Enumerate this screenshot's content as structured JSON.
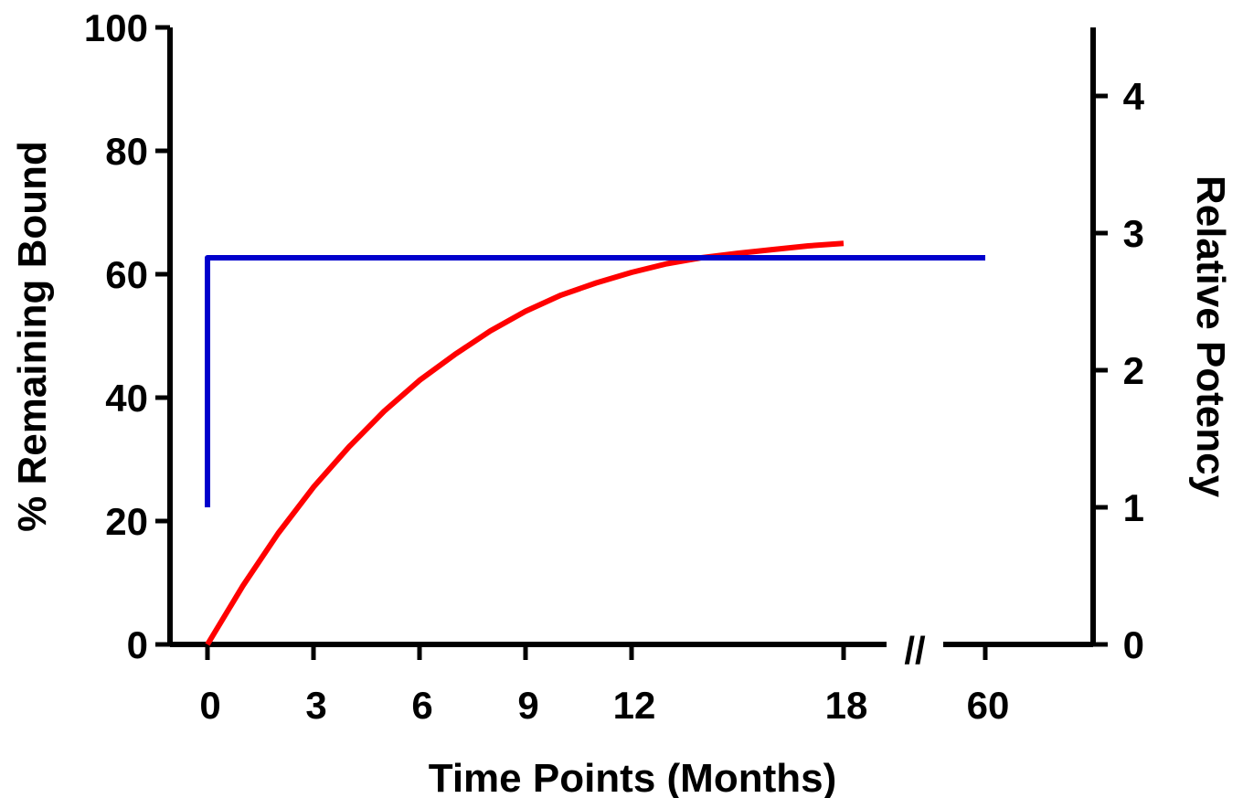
{
  "chart_data": {
    "type": "line",
    "xlabel": "Time Points (Months)",
    "ylabel_left": "% Remaining Bound",
    "ylabel_right": "Relative Potency",
    "x_ticks": [
      "0",
      "3",
      "6",
      "9",
      "12",
      "18",
      "60"
    ],
    "y_left_ticks": [
      "0",
      "20",
      "40",
      "60",
      "80",
      "100"
    ],
    "y_right_ticks": [
      "0",
      "1",
      "2",
      "3",
      "4"
    ],
    "ylim_left": [
      0,
      100
    ],
    "ylim_right": [
      0,
      4.5
    ],
    "axis_break": "//",
    "grid": false,
    "legend": "none",
    "series": [
      {
        "axis": "left",
        "color": "#ff0000",
        "x": [
          0,
          1,
          2,
          3,
          4,
          5,
          6,
          7,
          8,
          9,
          10,
          11,
          12,
          13,
          14,
          15,
          16,
          17,
          18
        ],
        "values": [
          0,
          9.5,
          18.0,
          25.5,
          32.0,
          37.8,
          42.8,
          47.0,
          50.8,
          54.0,
          56.6,
          58.6,
          60.3,
          61.7,
          62.7,
          63.4,
          64.0,
          64.6,
          65.0
        ]
      },
      {
        "axis": "right",
        "color": "#0000cc",
        "x": [
          0,
          0,
          0,
          60
        ],
        "values": [
          1.0,
          2.8,
          2.82,
          2.82
        ]
      }
    ]
  }
}
